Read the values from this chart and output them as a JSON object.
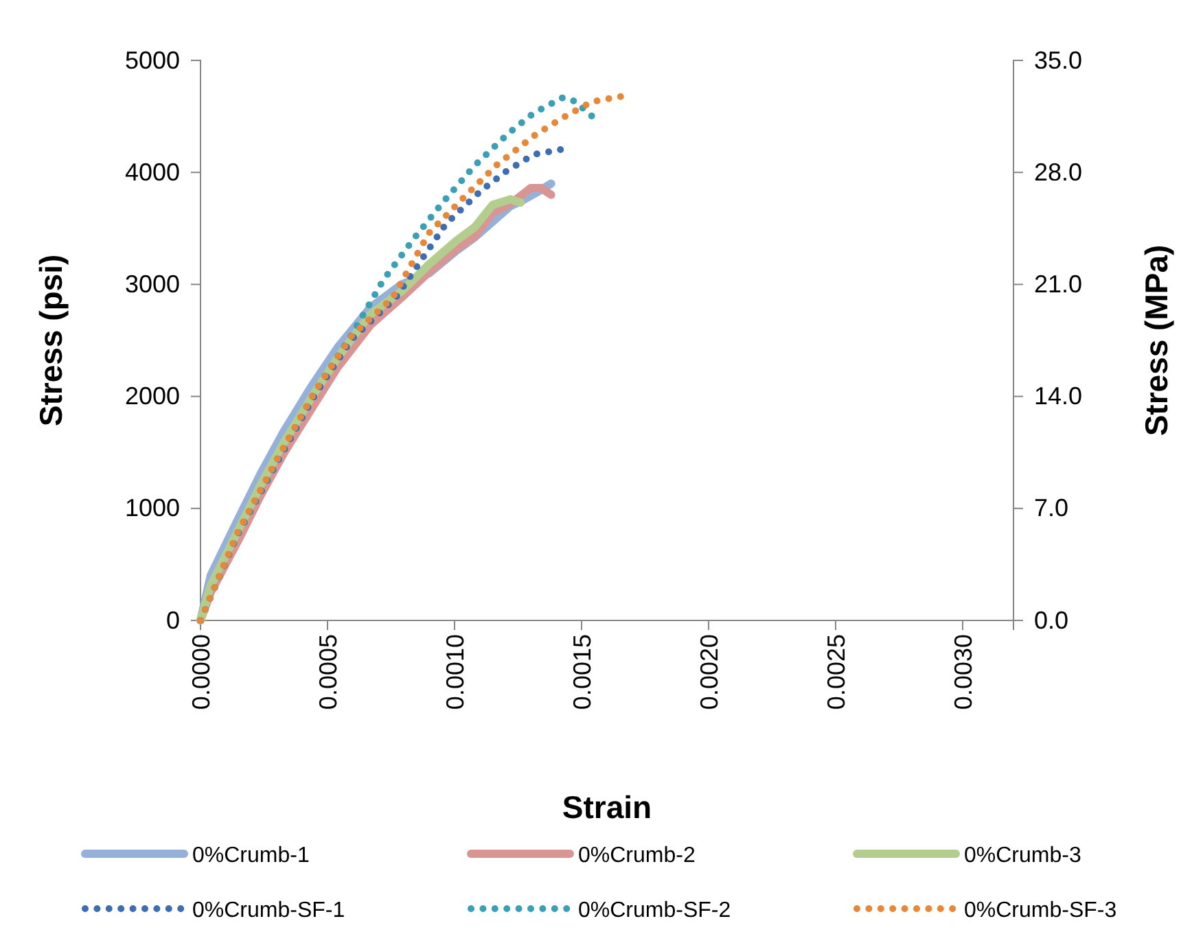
{
  "chart_data": {
    "type": "line",
    "xlabel": "Strain",
    "ylabel": "Stress (psi)",
    "y2label": "Stress (MPa)",
    "xlim": [
      0,
      0.0032
    ],
    "xticks": [
      {
        "value": 0,
        "label": "0.0000"
      },
      {
        "value": 0.0005,
        "label": "0.0005"
      },
      {
        "value": 0.001,
        "label": "0.0010"
      },
      {
        "value": 0.0015,
        "label": "0.0015"
      },
      {
        "value": 0.002,
        "label": "0.0020"
      },
      {
        "value": 0.0025,
        "label": "0.0025"
      },
      {
        "value": 0.003,
        "label": "0.0030"
      }
    ],
    "ylim": [
      0,
      5000
    ],
    "yticks": [
      0,
      1000,
      2000,
      3000,
      4000,
      5000
    ],
    "y2lim": [
      0,
      35
    ],
    "y2ticks": [
      {
        "value": 0,
        "label": "0.0"
      },
      {
        "value": 7,
        "label": "7.0"
      },
      {
        "value": 14,
        "label": "14.0"
      },
      {
        "value": 21,
        "label": "21.0"
      },
      {
        "value": 28,
        "label": "28.0"
      },
      {
        "value": 35,
        "label": "35.0"
      }
    ],
    "grid": false,
    "legend": "bottom",
    "series": [
      {
        "name": "0%Crumb-1",
        "color": "#95b0d9",
        "line_style": "solid",
        "x": [
          0,
          4e-05,
          0.000147,
          0.000237,
          0.000326,
          0.000434,
          0.000541,
          0.000667,
          0.000792,
          0.0009,
          0.001007,
          0.001079,
          0.00115,
          0.00122,
          0.00126,
          0.00133,
          0.00138
        ],
        "values": [
          0,
          400,
          900,
          1310,
          1680,
          2080,
          2440,
          2790,
          3000,
          3100,
          3300,
          3420,
          3560,
          3700,
          3740,
          3830,
          3900
        ]
      },
      {
        "name": "0%Crumb-2",
        "color": "#d99594",
        "line_style": "solid",
        "x": [
          0,
          4e-05,
          0.00015,
          0.00024,
          0.00033,
          0.00044,
          0.00054,
          0.00067,
          0.00079,
          0.0009,
          0.00101,
          0.00108,
          0.00115,
          0.00122,
          0.0013,
          0.00134,
          0.00138
        ],
        "values": [
          0,
          250,
          720,
          1130,
          1500,
          1900,
          2260,
          2640,
          2880,
          3110,
          3320,
          3430,
          3640,
          3720,
          3860,
          3860,
          3800
        ]
      },
      {
        "name": "0%Crumb-3",
        "color": "#b3cd8e",
        "line_style": "solid",
        "x": [
          0,
          4e-05,
          0.000147,
          0.000237,
          0.000326,
          0.000434,
          0.000541,
          0.000667,
          0.000792,
          0.0009,
          0.001007,
          0.001079,
          0.00115,
          0.00122,
          0.00126
        ],
        "values": [
          0,
          310,
          800,
          1210,
          1580,
          1980,
          2350,
          2730,
          2940,
          3180,
          3390,
          3510,
          3710,
          3760,
          3730
        ]
      },
      {
        "name": "0%Crumb-SF-1",
        "color": "#3f6db2",
        "line_style": "dotted",
        "x": [
          0,
          0.000147,
          0.000299,
          0.000452,
          0.000595,
          0.000768,
          0.000966,
          0.001106,
          0.001204,
          0.001312,
          0.001434
        ],
        "values": [
          0,
          770,
          1400,
          2020,
          2510,
          2880,
          3540,
          3840,
          4010,
          4160,
          4210
        ]
      },
      {
        "name": "0%Crumb-SF-2",
        "color": "#3ba0b5",
        "line_style": "dotted",
        "x": [
          0,
          0.000147,
          0.000299,
          0.000452,
          0.000595,
          0.00072,
          0.000837,
          0.000953,
          0.001079,
          0.001213,
          0.001312,
          0.001428,
          0.00148,
          0.001523,
          0.001575
        ],
        "values": [
          0,
          780,
          1420,
          2050,
          2550,
          3040,
          3400,
          3730,
          4060,
          4350,
          4530,
          4670,
          4630,
          4530,
          4450
        ]
      },
      {
        "name": "0%Crumb-SF-3",
        "color": "#e6883a",
        "line_style": "dotted",
        "x": [
          0,
          0.000147,
          0.000299,
          0.000452,
          0.000595,
          0.000756,
          0.0009,
          0.001034,
          0.001168,
          0.001321,
          0.001428,
          0.00154,
          0.00166
        ],
        "values": [
          0,
          790,
          1430,
          2050,
          2540,
          2880,
          3460,
          3770,
          4070,
          4340,
          4490,
          4630,
          4680
        ]
      }
    ]
  }
}
